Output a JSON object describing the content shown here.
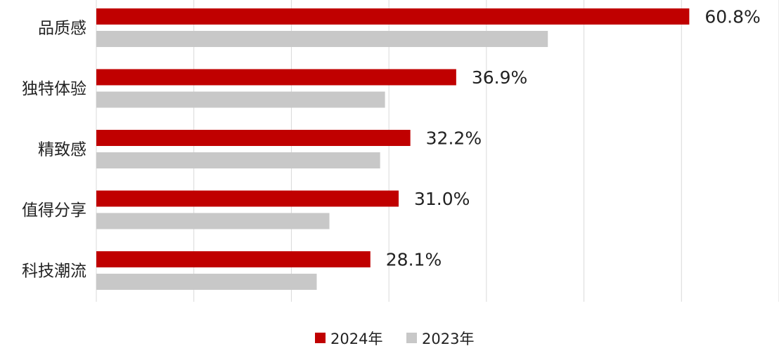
{
  "chart_data": {
    "type": "bar",
    "orientation": "horizontal",
    "categories": [
      "品质感",
      "独特体验",
      "精致感",
      "值得分享",
      "科技潮流"
    ],
    "series": [
      {
        "name": "2024年",
        "values": [
          60.8,
          36.9,
          32.2,
          31.0,
          28.1
        ],
        "labels": [
          "60.8%",
          "36.9%",
          "32.2%",
          "31.0%",
          "28.1%"
        ],
        "color": "#c00000"
      },
      {
        "name": "2023年",
        "values": [
          46.3,
          29.6,
          29.1,
          23.9,
          22.6
        ],
        "color": "#c8c8c8"
      }
    ],
    "xlim": [
      0,
      70
    ],
    "grid": true,
    "legend": "bottom-center",
    "title": "",
    "xlabel": "",
    "ylabel": ""
  }
}
